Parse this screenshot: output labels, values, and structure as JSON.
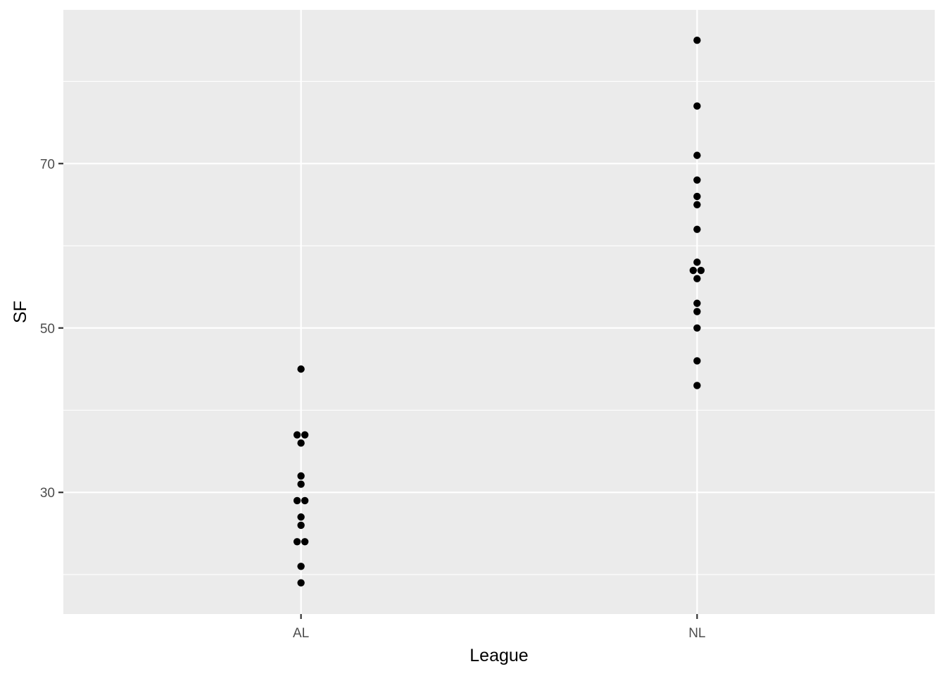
{
  "chart_data": {
    "type": "scatter",
    "xlabel": "League",
    "ylabel": "SF",
    "categories": [
      "AL",
      "NL"
    ],
    "ylim": [
      15.2,
      88.7
    ],
    "y_ticks": [
      30,
      50,
      70
    ],
    "y_minor_ticks": [
      20,
      40,
      60,
      80
    ],
    "grid": true,
    "legend": "none",
    "colors": {
      "panel": "#ebebeb",
      "grid": "#ffffff",
      "point": "#000000"
    },
    "points": [
      {
        "category": "AL",
        "y": 45,
        "jitter": 0
      },
      {
        "category": "AL",
        "y": 37,
        "jitter": -1
      },
      {
        "category": "AL",
        "y": 37,
        "jitter": 1
      },
      {
        "category": "AL",
        "y": 36,
        "jitter": 0
      },
      {
        "category": "AL",
        "y": 32,
        "jitter": 0
      },
      {
        "category": "AL",
        "y": 31,
        "jitter": 0
      },
      {
        "category": "AL",
        "y": 29,
        "jitter": -1
      },
      {
        "category": "AL",
        "y": 29,
        "jitter": 1
      },
      {
        "category": "AL",
        "y": 27,
        "jitter": 0
      },
      {
        "category": "AL",
        "y": 26,
        "jitter": 0
      },
      {
        "category": "AL",
        "y": 24,
        "jitter": -1
      },
      {
        "category": "AL",
        "y": 24,
        "jitter": 1
      },
      {
        "category": "AL",
        "y": 21,
        "jitter": 0
      },
      {
        "category": "AL",
        "y": 19,
        "jitter": 0
      },
      {
        "category": "NL",
        "y": 85,
        "jitter": 0
      },
      {
        "category": "NL",
        "y": 77,
        "jitter": 0
      },
      {
        "category": "NL",
        "y": 71,
        "jitter": 0
      },
      {
        "category": "NL",
        "y": 68,
        "jitter": 0
      },
      {
        "category": "NL",
        "y": 66,
        "jitter": 0
      },
      {
        "category": "NL",
        "y": 65,
        "jitter": 0
      },
      {
        "category": "NL",
        "y": 62,
        "jitter": 0
      },
      {
        "category": "NL",
        "y": 58,
        "jitter": 0
      },
      {
        "category": "NL",
        "y": 57,
        "jitter": -1
      },
      {
        "category": "NL",
        "y": 57,
        "jitter": 1
      },
      {
        "category": "NL",
        "y": 56,
        "jitter": 0
      },
      {
        "category": "NL",
        "y": 53,
        "jitter": 0
      },
      {
        "category": "NL",
        "y": 52,
        "jitter": 0
      },
      {
        "category": "NL",
        "y": 50,
        "jitter": 0
      },
      {
        "category": "NL",
        "y": 46,
        "jitter": 0
      },
      {
        "category": "NL",
        "y": 43,
        "jitter": 0
      }
    ]
  }
}
